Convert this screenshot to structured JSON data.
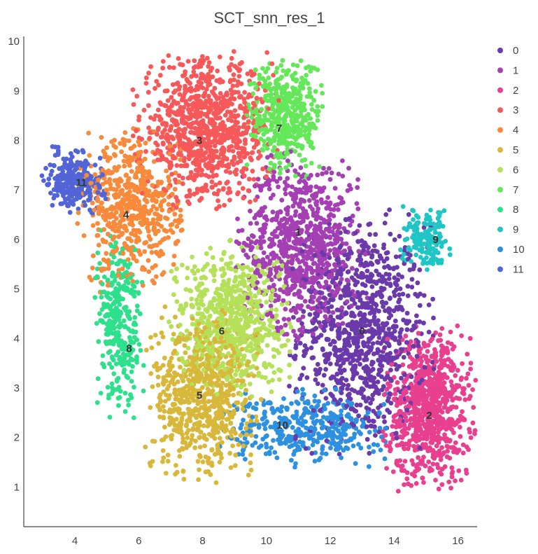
{
  "chart_data": {
    "type": "scatter",
    "title": "SCT_snn_res_1",
    "xlabel": "",
    "ylabel": "",
    "xlim": [
      2.4,
      16.6
    ],
    "ylim": [
      0.2,
      10.1
    ],
    "xticks": [
      4,
      6,
      8,
      10,
      12,
      14,
      16
    ],
    "yticks": [
      1,
      2,
      3,
      4,
      5,
      6,
      7,
      8,
      9,
      10
    ],
    "grid": false,
    "legend_position": "top-right",
    "series": [
      {
        "name": "0",
        "color": "#6a3aaa",
        "centroid": [
          13.0,
          4.1
        ],
        "spread": [
          1.0,
          1.1
        ],
        "count": 900
      },
      {
        "name": "1",
        "color": "#a53fb4",
        "centroid": [
          11.1,
          5.9
        ],
        "spread": [
          0.9,
          0.85
        ],
        "count": 800
      },
      {
        "name": "2",
        "color": "#e8408e",
        "centroid": [
          15.1,
          2.6
        ],
        "spread": [
          0.65,
          0.75
        ],
        "count": 800
      },
      {
        "name": "3",
        "color": "#f7585a",
        "centroid": [
          8.1,
          8.2
        ],
        "spread": [
          1.0,
          0.7
        ],
        "count": 900
      },
      {
        "name": "4",
        "color": "#f78a3b",
        "centroid": [
          5.8,
          6.6
        ],
        "spread": [
          0.75,
          0.75
        ],
        "count": 550
      },
      {
        "name": "5",
        "color": "#d8b83a",
        "centroid": [
          8.0,
          2.9
        ],
        "spread": [
          0.8,
          0.8
        ],
        "count": 700
      },
      {
        "name": "6",
        "color": "#b5e15a",
        "centroid": [
          8.9,
          4.4
        ],
        "spread": [
          0.85,
          0.7
        ],
        "count": 700
      },
      {
        "name": "7",
        "color": "#64e85a",
        "centroid": [
          10.6,
          8.5
        ],
        "spread": [
          0.55,
          0.55
        ],
        "count": 420
      },
      {
        "name": "8",
        "color": "#2ee08b",
        "centroid": [
          5.4,
          4.3
        ],
        "spread": [
          0.35,
          0.85
        ],
        "count": 320
      },
      {
        "name": "9",
        "color": "#20c5c5",
        "centroid": [
          15.0,
          6.0
        ],
        "spread": [
          0.35,
          0.3
        ],
        "count": 160
      },
      {
        "name": "10",
        "color": "#2d91e0",
        "centroid": [
          11.3,
          2.2
        ],
        "spread": [
          1.2,
          0.35
        ],
        "count": 380
      },
      {
        "name": "11",
        "color": "#5265d6",
        "centroid": [
          4.0,
          7.2
        ],
        "spread": [
          0.45,
          0.3
        ],
        "count": 260
      }
    ],
    "cluster_labels": [
      {
        "text": "0",
        "x": 13.0,
        "y": 4.15
      },
      {
        "text": "1",
        "x": 11.0,
        "y": 6.15
      },
      {
        "text": "2",
        "x": 15.1,
        "y": 2.45
      },
      {
        "text": "3",
        "x": 7.9,
        "y": 8.0
      },
      {
        "text": "4",
        "x": 5.6,
        "y": 6.5
      },
      {
        "text": "5",
        "x": 7.9,
        "y": 2.85
      },
      {
        "text": "6",
        "x": 8.6,
        "y": 4.15
      },
      {
        "text": "7",
        "x": 10.4,
        "y": 8.25
      },
      {
        "text": "8",
        "x": 5.7,
        "y": 3.8
      },
      {
        "text": "9",
        "x": 15.3,
        "y": 6.0
      },
      {
        "text": "10",
        "x": 10.5,
        "y": 2.25
      },
      {
        "text": "11",
        "x": 4.2,
        "y": 7.15
      }
    ]
  }
}
